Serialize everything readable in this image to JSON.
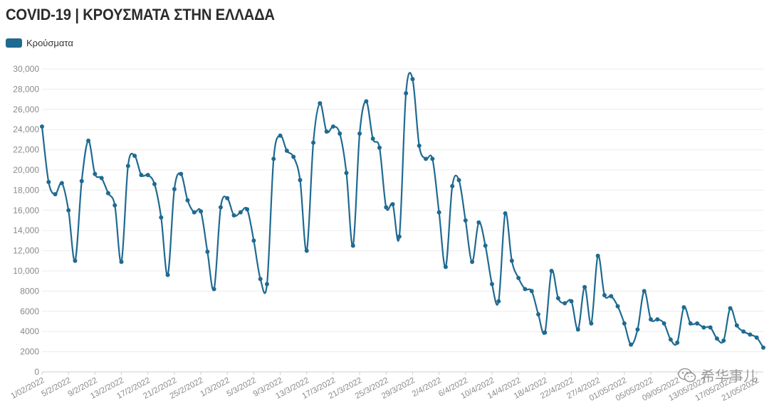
{
  "chart_data": {
    "type": "line",
    "title": "COVID-19 | ΚΡΟΥΣΜΑΤΑ ΣΤΗΝ ΕΛΛΑΔΑ",
    "legend": [
      {
        "name": "Κρούσματα",
        "color": "#1f6a91"
      }
    ],
    "legend_position": "top-left",
    "grid": true,
    "y_ticks": [
      0,
      2000,
      4000,
      6000,
      8000,
      "10,000",
      "12,000",
      "14,000",
      "16,000",
      "18,000",
      "20,000",
      "22,000",
      "24,000",
      "26,000",
      "28,000",
      "30,000"
    ],
    "ylim": [
      0,
      30000
    ],
    "x_tick_labels": [
      "1/02/2022",
      "5/2/2022",
      "9/2/2022",
      "13/2/2022",
      "17/2/2022",
      "21/2/2022",
      "25/2/2022",
      "1/3/2022",
      "5/3/2022",
      "9/3/2022",
      "13/3/2022",
      "17/3/2022",
      "21/3/2022",
      "25/3/2022",
      "29/3/2022",
      "2/4/2022",
      "6/4/2022",
      "10/4/2022",
      "14/4/2022",
      "18/4/2022",
      "22/4/2022",
      "27/4/2022",
      "01/05/2022",
      "05/05/2022",
      "09/05/2022",
      "13/05/2022",
      "17/05/2022",
      "21/05/2022"
    ],
    "series": [
      {
        "name": "Κρούσματα",
        "color": "#1f6a91",
        "values": [
          24300,
          18800,
          17600,
          18700,
          16000,
          11000,
          18900,
          22900,
          19600,
          19200,
          17700,
          16500,
          10900,
          20400,
          21400,
          19500,
          19500,
          18600,
          15300,
          9600,
          18100,
          19600,
          17000,
          15800,
          15900,
          11900,
          8200,
          16300,
          17200,
          15500,
          15800,
          16100,
          13000,
          9200,
          8700,
          21100,
          23400,
          21900,
          21300,
          19000,
          12000,
          22700,
          26600,
          23800,
          24300,
          23600,
          19700,
          12500,
          23600,
          26800,
          23100,
          22200,
          16300,
          16600,
          13400,
          27600,
          29000,
          22400,
          21100,
          21100,
          15800,
          10400,
          18400,
          19000,
          15000,
          10900,
          14800,
          12500,
          8700,
          7000,
          15700,
          11000,
          9300,
          8200,
          8000,
          5700,
          3900,
          10000,
          7300,
          6800,
          7000,
          4200,
          8400,
          4800,
          11500,
          7600,
          7500,
          6500,
          4800,
          2700,
          4200,
          8000,
          5200,
          5200,
          4800,
          3200,
          2900,
          6400,
          4800,
          4800,
          4400,
          4400,
          3300,
          3100,
          6300,
          4600,
          4000,
          3700,
          3400,
          2400
        ]
      }
    ]
  },
  "watermark": {
    "text": "希华事儿",
    "icon": "wechat-icon"
  }
}
